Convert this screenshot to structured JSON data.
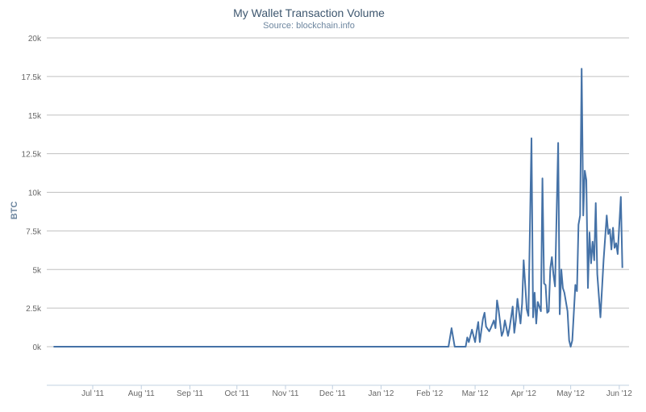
{
  "chart_data": {
    "type": "line",
    "title": "My Wallet Transaction Volume",
    "subtitle": "Source: blockchain.info",
    "xlabel": "",
    "ylabel": "BTC",
    "ylim": [
      -2500,
      20000
    ],
    "xlim": [
      "2011-06-06",
      "2012-06-03"
    ],
    "grid": "horizontal",
    "legend": "none",
    "line_color": "#4572A7",
    "y_ticks": [
      0,
      2500,
      5000,
      7500,
      10000,
      12500,
      15000,
      17500,
      20000
    ],
    "y_tick_labels": [
      "0k",
      "2.5k",
      "5k",
      "7.5k",
      "10k",
      "12.5k",
      "15k",
      "17.5k",
      "20k"
    ],
    "x_ticks": [
      "2011-07-01",
      "2011-08-01",
      "2011-09-01",
      "2011-10-01",
      "2011-11-01",
      "2011-12-01",
      "2012-01-01",
      "2012-02-01",
      "2012-03-01",
      "2012-04-01",
      "2012-05-01",
      "2012-06-01"
    ],
    "x_tick_labels": [
      "Jul '11",
      "Aug '11",
      "Sep '11",
      "Oct '11",
      "Nov '11",
      "Dec '11",
      "Jan '12",
      "Feb '12",
      "Mar '12",
      "Apr '12",
      "May '12",
      "Jun '12"
    ],
    "series": [
      {
        "points": [
          [
            "2011-06-06",
            0
          ],
          [
            "2012-02-13",
            0
          ],
          [
            "2012-02-15",
            1200
          ],
          [
            "2012-02-17",
            0
          ],
          [
            "2012-02-24",
            0
          ],
          [
            "2012-02-25",
            600
          ],
          [
            "2012-02-26",
            300
          ],
          [
            "2012-02-27",
            700
          ],
          [
            "2012-02-28",
            1100
          ],
          [
            "2012-03-01",
            300
          ],
          [
            "2012-03-02",
            1000
          ],
          [
            "2012-03-03",
            1600
          ],
          [
            "2012-03-04",
            300
          ],
          [
            "2012-03-06",
            1800
          ],
          [
            "2012-03-07",
            2200
          ],
          [
            "2012-03-08",
            1300
          ],
          [
            "2012-03-10",
            1000
          ],
          [
            "2012-03-11",
            1200
          ],
          [
            "2012-03-13",
            1700
          ],
          [
            "2012-03-14",
            1200
          ],
          [
            "2012-03-15",
            3000
          ],
          [
            "2012-03-16",
            2400
          ],
          [
            "2012-03-18",
            700
          ],
          [
            "2012-03-19",
            1000
          ],
          [
            "2012-03-20",
            1700
          ],
          [
            "2012-03-21",
            1200
          ],
          [
            "2012-03-22",
            700
          ],
          [
            "2012-03-23",
            1200
          ],
          [
            "2012-03-25",
            2600
          ],
          [
            "2012-03-26",
            900
          ],
          [
            "2012-03-27",
            1700
          ],
          [
            "2012-03-28",
            3100
          ],
          [
            "2012-03-30",
            1500
          ],
          [
            "2012-03-31",
            2800
          ],
          [
            "2012-04-01",
            5600
          ],
          [
            "2012-04-03",
            2400
          ],
          [
            "2012-04-04",
            2000
          ],
          [
            "2012-04-06",
            13500
          ],
          [
            "2012-04-07",
            1900
          ],
          [
            "2012-04-08",
            3500
          ],
          [
            "2012-04-09",
            1500
          ],
          [
            "2012-04-10",
            2900
          ],
          [
            "2012-04-12",
            2300
          ],
          [
            "2012-04-13",
            10900
          ],
          [
            "2012-04-14",
            4100
          ],
          [
            "2012-04-15",
            4000
          ],
          [
            "2012-04-16",
            2200
          ],
          [
            "2012-04-17",
            2300
          ],
          [
            "2012-04-18",
            5100
          ],
          [
            "2012-04-19",
            5800
          ],
          [
            "2012-04-20",
            4700
          ],
          [
            "2012-04-21",
            3900
          ],
          [
            "2012-04-23",
            13200
          ],
          [
            "2012-04-24",
            2100
          ],
          [
            "2012-04-25",
            5000
          ],
          [
            "2012-04-26",
            3800
          ],
          [
            "2012-04-27",
            3500
          ],
          [
            "2012-04-29",
            2300
          ],
          [
            "2012-04-30",
            400
          ],
          [
            "2012-05-01",
            0
          ],
          [
            "2012-05-02",
            400
          ],
          [
            "2012-05-04",
            4000
          ],
          [
            "2012-05-05",
            3600
          ],
          [
            "2012-05-06",
            7900
          ],
          [
            "2012-05-07",
            8500
          ],
          [
            "2012-05-08",
            18000
          ],
          [
            "2012-05-09",
            8500
          ],
          [
            "2012-05-10",
            11400
          ],
          [
            "2012-05-11",
            10800
          ],
          [
            "2012-05-12",
            3800
          ],
          [
            "2012-05-13",
            7400
          ],
          [
            "2012-05-14",
            5400
          ],
          [
            "2012-05-15",
            6800
          ],
          [
            "2012-05-16",
            5600
          ],
          [
            "2012-05-17",
            9300
          ],
          [
            "2012-05-18",
            4700
          ],
          [
            "2012-05-20",
            1900
          ],
          [
            "2012-05-22",
            5600
          ],
          [
            "2012-05-24",
            8500
          ],
          [
            "2012-05-25",
            7300
          ],
          [
            "2012-05-26",
            7600
          ],
          [
            "2012-05-27",
            6300
          ],
          [
            "2012-05-28",
            7700
          ],
          [
            "2012-05-29",
            6400
          ],
          [
            "2012-05-30",
            6700
          ],
          [
            "2012-05-31",
            6000
          ],
          [
            "2012-06-02",
            9700
          ],
          [
            "2012-06-03",
            5100
          ]
        ]
      }
    ]
  }
}
